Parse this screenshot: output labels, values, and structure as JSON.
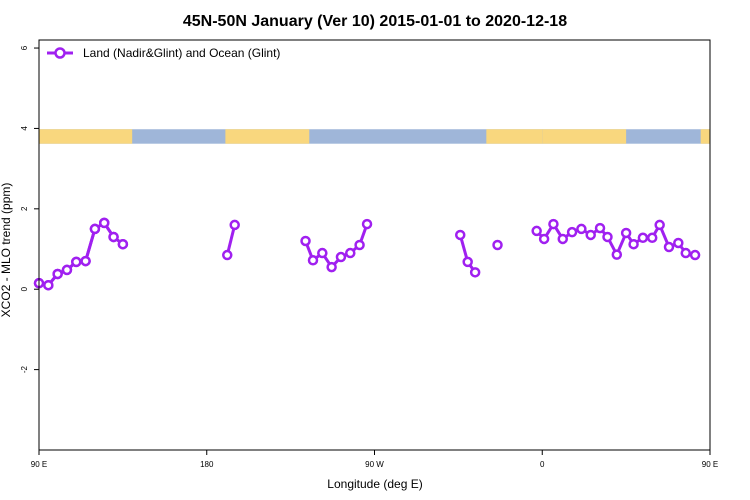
{
  "chart_data": {
    "type": "line",
    "title": "45N-50N January (Ver 10)   2015-01-01 to 2020-12-18",
    "xlabel": "Longitude (deg E)",
    "ylabel": "XCO2 - MLO trend (ppm)",
    "xlim": [
      90,
      450
    ],
    "ylim": [
      -4,
      6.2
    ],
    "x_ticks": [
      {
        "value": 90,
        "label": "90 E"
      },
      {
        "value": 180,
        "label": "180"
      },
      {
        "value": 270,
        "label": "90 W"
      },
      {
        "value": 360,
        "label": "0"
      },
      {
        "value": 450,
        "label": "90 E"
      },
      {
        "value": 540,
        "label": "180"
      }
    ],
    "y_ticks": [
      {
        "value": -2,
        "label": "-2"
      },
      {
        "value": 0,
        "label": "0"
      },
      {
        "value": 2,
        "label": "2"
      },
      {
        "value": 4,
        "label": "4"
      },
      {
        "value": 6,
        "label": "6"
      }
    ],
    "legend": {
      "position": "top-left",
      "label": "Land (Nadir&Glint) and Ocean (Glint)"
    },
    "series_color": "#a020f0",
    "land_color": "#f9d77e",
    "ocean_color": "#9fb6d9",
    "series": [
      {
        "name": "Land (Nadir&Glint) and Ocean (Glint)",
        "segments": [
          [
            [
              90,
              0.15
            ],
            [
              95,
              0.1
            ],
            [
              100,
              0.38
            ],
            [
              105,
              0.48
            ],
            [
              110,
              0.68
            ],
            [
              115,
              0.7
            ],
            [
              120,
              1.5
            ],
            [
              125,
              1.65
            ],
            [
              130,
              1.3
            ],
            [
              135,
              1.12
            ]
          ],
          [
            [
              191,
              0.85
            ],
            [
              195,
              1.6
            ]
          ],
          [
            [
              233,
              1.2
            ],
            [
              237,
              0.72
            ],
            [
              242,
              0.9
            ],
            [
              247,
              0.55
            ],
            [
              252,
              0.8
            ],
            [
              257,
              0.9
            ],
            [
              262,
              1.1
            ],
            [
              266,
              1.62
            ]
          ],
          [
            [
              316,
              1.35
            ],
            [
              320,
              0.68
            ],
            [
              324,
              0.42
            ]
          ],
          [
            [
              336,
              1.1
            ]
          ],
          [
            [
              357,
              1.45
            ],
            [
              361,
              1.25
            ],
            [
              366,
              1.62
            ],
            [
              371,
              1.25
            ],
            [
              376,
              1.42
            ],
            [
              381,
              1.5
            ],
            [
              386,
              1.35
            ],
            [
              391,
              1.52
            ],
            [
              395,
              1.3
            ],
            [
              400,
              0.86
            ],
            [
              405,
              1.4
            ],
            [
              409,
              1.12
            ],
            [
              414,
              1.28
            ],
            [
              419,
              1.28
            ],
            [
              423,
              1.6
            ],
            [
              428,
              1.05
            ],
            [
              433,
              1.15
            ],
            [
              437,
              0.9
            ],
            [
              442,
              0.85
            ]
          ],
          [
            [
              90,
              0.15
            ],
            [
              95,
              0.1
            ],
            [
              100,
              0.38
            ],
            [
              105,
              0.48
            ],
            [
              110,
              0.68
            ],
            [
              115,
              0.7
            ],
            [
              120,
              1.5
            ],
            [
              125,
              1.65
            ],
            [
              130,
              1.3
            ],
            [
              135,
              1.12
            ]
          ]
        ]
      }
    ],
    "map_strip": {
      "y_range": [
        3.62,
        3.98
      ],
      "land_x_ranges": [
        [
          90,
          140
        ],
        [
          190,
          235
        ],
        [
          330,
          360
        ],
        [
          360,
          405
        ],
        [
          445,
          450
        ]
      ]
    }
  }
}
